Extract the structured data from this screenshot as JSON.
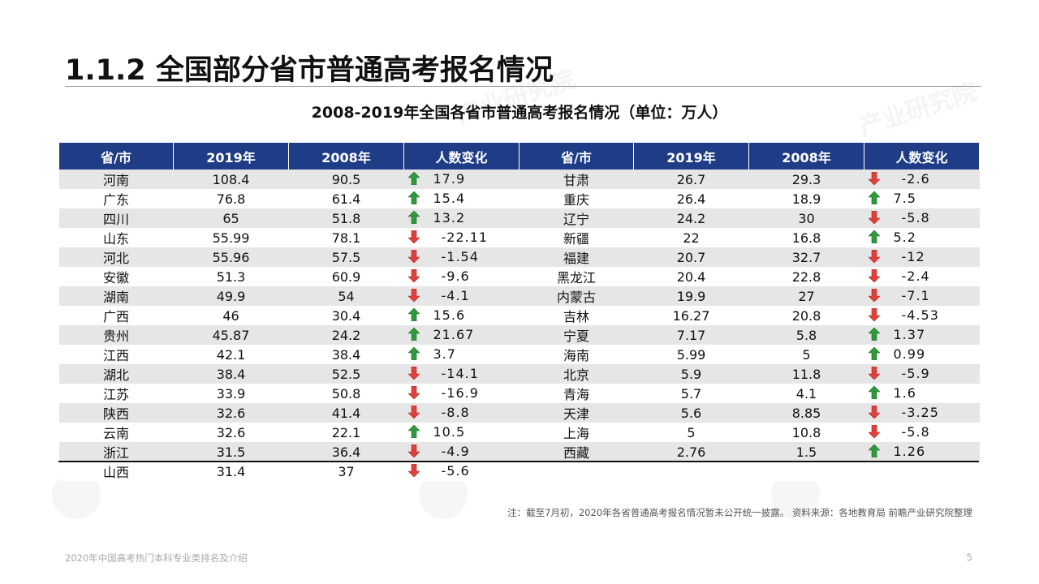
{
  "header": {
    "title": "1.1.2 全国部分省市普通高考报名情况"
  },
  "table_title": "2008-2019年全国各省市普通高考报名情况（单位：万人）",
  "columns": [
    "省/市",
    "2019年",
    "2008年",
    "人数变化",
    "省/市",
    "2019年",
    "2008年",
    "人数变化"
  ],
  "left_rows": [
    {
      "province": "河南",
      "y2019": "108.4",
      "y2008": "90.5",
      "change": "17.9",
      "trend": "up"
    },
    {
      "province": "广东",
      "y2019": "76.8",
      "y2008": "61.4",
      "change": "15.4",
      "trend": "up"
    },
    {
      "province": "四川",
      "y2019": "65",
      "y2008": "51.8",
      "change": "13.2",
      "trend": "up"
    },
    {
      "province": "山东",
      "y2019": "55.99",
      "y2008": "78.1",
      "change": "-22.11",
      "trend": "down"
    },
    {
      "province": "河北",
      "y2019": "55.96",
      "y2008": "57.5",
      "change": "-1.54",
      "trend": "down"
    },
    {
      "province": "安徽",
      "y2019": "51.3",
      "y2008": "60.9",
      "change": "-9.6",
      "trend": "down"
    },
    {
      "province": "湖南",
      "y2019": "49.9",
      "y2008": "54",
      "change": "-4.1",
      "trend": "down"
    },
    {
      "province": "广西",
      "y2019": "46",
      "y2008": "30.4",
      "change": "15.6",
      "trend": "up"
    },
    {
      "province": "贵州",
      "y2019": "45.87",
      "y2008": "24.2",
      "change": "21.67",
      "trend": "up"
    },
    {
      "province": "江西",
      "y2019": "42.1",
      "y2008": "38.4",
      "change": "3.7",
      "trend": "up"
    },
    {
      "province": "湖北",
      "y2019": "38.4",
      "y2008": "52.5",
      "change": "-14.1",
      "trend": "down"
    },
    {
      "province": "江苏",
      "y2019": "33.9",
      "y2008": "50.8",
      "change": "-16.9",
      "trend": "down"
    },
    {
      "province": "陕西",
      "y2019": "32.6",
      "y2008": "41.4",
      "change": "-8.8",
      "trend": "down"
    },
    {
      "province": "云南",
      "y2019": "32.6",
      "y2008": "22.1",
      "change": "10.5",
      "trend": "up"
    },
    {
      "province": "浙江",
      "y2019": "31.5",
      "y2008": "36.4",
      "change": "-4.9",
      "trend": "down"
    },
    {
      "province": "山西",
      "y2019": "31.4",
      "y2008": "37",
      "change": "-5.6",
      "trend": "down"
    }
  ],
  "right_rows": [
    {
      "province": "甘肃",
      "y2019": "26.7",
      "y2008": "29.3",
      "change": "-2.6",
      "trend": "down"
    },
    {
      "province": "重庆",
      "y2019": "26.4",
      "y2008": "18.9",
      "change": "7.5",
      "trend": "up"
    },
    {
      "province": "辽宁",
      "y2019": "24.2",
      "y2008": "30",
      "change": "-5.8",
      "trend": "down"
    },
    {
      "province": "新疆",
      "y2019": "22",
      "y2008": "16.8",
      "change": "5.2",
      "trend": "up"
    },
    {
      "province": "福建",
      "y2019": "20.7",
      "y2008": "32.7",
      "change": "-12",
      "trend": "down"
    },
    {
      "province": "黑龙江",
      "y2019": "20.4",
      "y2008": "22.8",
      "change": "-2.4",
      "trend": "down"
    },
    {
      "province": "内蒙古",
      "y2019": "19.9",
      "y2008": "27",
      "change": "-7.1",
      "trend": "down"
    },
    {
      "province": "吉林",
      "y2019": "16.27",
      "y2008": "20.8",
      "change": "-4.53",
      "trend": "down"
    },
    {
      "province": "宁夏",
      "y2019": "7.17",
      "y2008": "5.8",
      "change": "1.37",
      "trend": "up"
    },
    {
      "province": "海南",
      "y2019": "5.99",
      "y2008": "5",
      "change": "0.99",
      "trend": "up"
    },
    {
      "province": "北京",
      "y2019": "5.9",
      "y2008": "11.8",
      "change": "-5.9",
      "trend": "down"
    },
    {
      "province": "青海",
      "y2019": "5.7",
      "y2008": "4.1",
      "change": "1.6",
      "trend": "up"
    },
    {
      "province": "天津",
      "y2019": "5.6",
      "y2008": "8.85",
      "change": "-3.25",
      "trend": "down"
    },
    {
      "province": "上海",
      "y2019": "5",
      "y2008": "10.8",
      "change": "-5.8",
      "trend": "down"
    },
    {
      "province": "西藏",
      "y2019": "2.76",
      "y2008": "1.5",
      "change": "1.26",
      "trend": "up"
    }
  ],
  "note": "注：截至7月初，2020年各省普通高考报名情况暂未公开统一披露。 资料来源：各地教育局 前瞻产业研究院整理",
  "footer": {
    "left": "2020年中国高考热门本科专业类排名及介绍",
    "page": "5"
  },
  "colors": {
    "header_bg": "#1f3d87",
    "up_arrow": "#2e9a3a",
    "down_arrow": "#e0403a",
    "stripe": "#e6e6e6"
  },
  "icons": {
    "up": "green-up-arrow-icon",
    "down": "red-down-arrow-icon"
  }
}
